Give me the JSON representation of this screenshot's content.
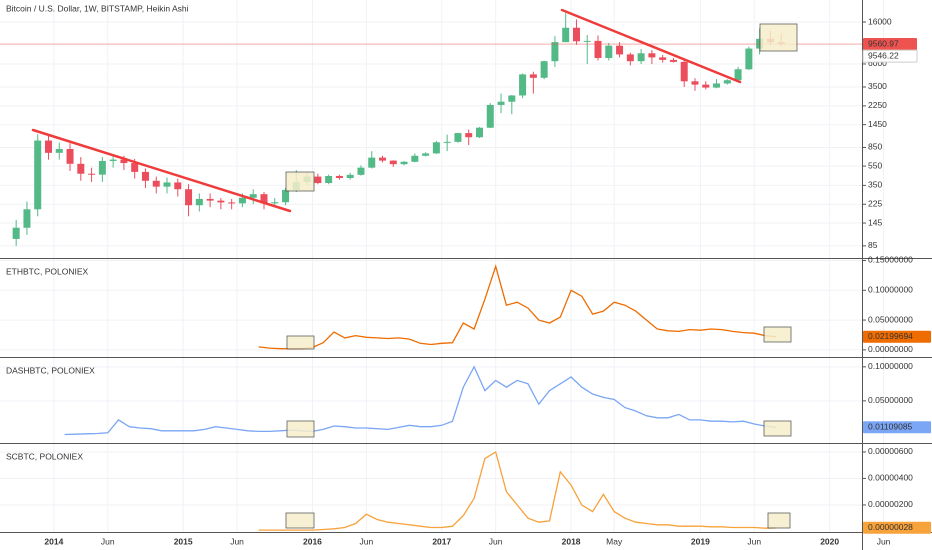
{
  "chart_data": [
    {
      "type": "candlestick",
      "title": "Bitcoin / U.S. Dollar, 1W, BITSTAMP, Heikin Ashi",
      "log_scale": true,
      "grid": true,
      "up_color": "#53b987",
      "down_color": "#eb4d5c",
      "ylim": [
        64,
        26800
      ],
      "yticks": [
        85,
        145,
        225,
        350,
        550,
        850,
        1450,
        2250,
        3500,
        6000,
        16000
      ],
      "price_labels": [
        9560.97,
        9546.22
      ],
      "price_line_color": "#ef5350",
      "x": [
        "2013-09",
        "2013-10",
        "2013-11",
        "2013-12",
        "2014-01",
        "2014-02",
        "2014-03",
        "2014-04",
        "2014-05",
        "2014-06",
        "2014-07",
        "2014-08",
        "2014-09",
        "2014-10",
        "2014-11",
        "2014-12",
        "2015-01",
        "2015-02",
        "2015-03",
        "2015-04",
        "2015-05",
        "2015-06",
        "2015-07",
        "2015-08",
        "2015-09",
        "2015-10",
        "2015-11",
        "2015-12",
        "2016-01",
        "2016-02",
        "2016-03",
        "2016-04",
        "2016-05",
        "2016-06",
        "2016-07",
        "2016-08",
        "2016-09",
        "2016-10",
        "2016-11",
        "2016-12",
        "2017-01",
        "2017-02",
        "2017-03",
        "2017-04",
        "2017-05",
        "2017-06",
        "2017-07",
        "2017-08",
        "2017-09",
        "2017-10",
        "2017-11",
        "2017-12",
        "2018-01",
        "2018-02",
        "2018-03",
        "2018-04",
        "2018-05",
        "2018-06",
        "2018-07",
        "2018-08",
        "2018-09",
        "2018-10",
        "2018-11",
        "2018-12",
        "2019-01",
        "2019-02",
        "2019-03",
        "2019-04",
        "2019-05",
        "2019-06",
        "2019-07",
        "2019-08"
      ],
      "open": [
        100,
        130,
        200,
        1000,
        750,
        820,
        580,
        460,
        450,
        620,
        640,
        590,
        480,
        390,
        340,
        375,
        320,
        220,
        255,
        245,
        235,
        230,
        262,
        285,
        230,
        236,
        315,
        378,
        430,
        370,
        436,
        416,
        448,
        530,
        670,
        625,
        575,
        608,
        700,
        740,
        960,
        970,
        1190,
        1080,
        1350,
        2300,
        2480,
        2870,
        4700,
        4340,
        6400,
        10000,
        14000,
        10200,
        10300,
        6900,
        9200,
        7500,
        6400,
        7700,
        7000,
        6600,
        6300,
        4000,
        3700,
        3450,
        3800,
        4100,
        5300,
        8600,
        10800,
        10000
      ],
      "high": [
        156,
        240,
        1160,
        1150,
        950,
        940,
        680,
        530,
        680,
        690,
        700,
        650,
        520,
        430,
        420,
        410,
        360,
        290,
        290,
        260,
        255,
        290,
        320,
        300,
        260,
        330,
        500,
        470,
        460,
        450,
        450,
        470,
        560,
        780,
        700,
        630,
        620,
        740,
        760,
        990,
        1150,
        1200,
        1290,
        1370,
        2400,
        3000,
        2900,
        4800,
        5000,
        6500,
        11500,
        19700,
        17000,
        11800,
        11700,
        9800,
        10000,
        7800,
        8500,
        8300,
        7400,
        6900,
        6500,
        4300,
        4000,
        4200,
        4200,
        5600,
        9000,
        13800,
        13000,
        12300
      ],
      "low": [
        85,
        110,
        170,
        640,
        640,
        490,
        390,
        380,
        380,
        530,
        500,
        410,
        330,
        290,
        290,
        270,
        170,
        190,
        210,
        200,
        200,
        210,
        225,
        200,
        210,
        220,
        300,
        350,
        360,
        360,
        400,
        400,
        440,
        520,
        600,
        540,
        560,
        600,
        690,
        730,
        780,
        950,
        900,
        1060,
        1340,
        1900,
        1850,
        2700,
        3000,
        4200,
        5600,
        10000,
        9400,
        6000,
        6500,
        6500,
        7000,
        5800,
        6000,
        6000,
        6200,
        6200,
        3500,
        3200,
        3300,
        3400,
        3700,
        4000,
        5200,
        7500,
        9300,
        9100
      ],
      "close": [
        130,
        200,
        1000,
        750,
        820,
        580,
        460,
        450,
        620,
        640,
        590,
        480,
        390,
        340,
        375,
        320,
        220,
        255,
        245,
        235,
        230,
        262,
        285,
        230,
        236,
        315,
        378,
        430,
        370,
        436,
        416,
        448,
        530,
        670,
        625,
        575,
        608,
        700,
        740,
        960,
        970,
        1190,
        1080,
        1350,
        2300,
        2480,
        2870,
        4700,
        4340,
        6400,
        10000,
        14000,
        10200,
        10300,
        6900,
        9200,
        7500,
        6400,
        7700,
        7000,
        6600,
        6300,
        4000,
        3700,
        3450,
        3800,
        4100,
        5300,
        8600,
        10800,
        10000,
        9600
      ]
    },
    {
      "type": "line",
      "title": "ETHBTC, POLONIEX",
      "color": "#ef6c00",
      "grid": true,
      "ylim": [
        -0.012,
        0.1525
      ],
      "yticks": [
        {
          "value": 0,
          "label": "0.00000000"
        },
        {
          "value": 0.05,
          "label": "0.05000000"
        },
        {
          "value": 0.1,
          "label": "0.10000000"
        },
        {
          "value": 0.15,
          "label": "0.15000000"
        }
      ],
      "last_label": 0.02199694,
      "x": [
        "2015-08",
        "2015-09",
        "2015-10",
        "2015-11",
        "2015-12",
        "2016-01",
        "2016-02",
        "2016-03",
        "2016-04",
        "2016-05",
        "2016-06",
        "2016-07",
        "2016-08",
        "2016-09",
        "2016-10",
        "2016-11",
        "2016-12",
        "2017-01",
        "2017-02",
        "2017-03",
        "2017-04",
        "2017-05",
        "2017-06",
        "2017-07",
        "2017-08",
        "2017-09",
        "2017-10",
        "2017-11",
        "2017-12",
        "2018-01",
        "2018-02",
        "2018-03",
        "2018-04",
        "2018-05",
        "2018-06",
        "2018-07",
        "2018-08",
        "2018-09",
        "2018-10",
        "2018-11",
        "2018-12",
        "2019-01",
        "2019-02",
        "2019-03",
        "2019-04",
        "2019-05",
        "2019-06",
        "2019-07",
        "2019-08"
      ],
      "values": [
        0.005,
        0.003,
        0.002,
        0.002,
        0.002,
        0.004,
        0.012,
        0.03,
        0.02,
        0.024,
        0.021,
        0.02,
        0.019,
        0.02,
        0.018,
        0.011,
        0.009,
        0.011,
        0.012,
        0.045,
        0.035,
        0.085,
        0.14,
        0.075,
        0.08,
        0.07,
        0.05,
        0.045,
        0.055,
        0.1,
        0.09,
        0.06,
        0.065,
        0.08,
        0.075,
        0.065,
        0.05,
        0.035,
        0.032,
        0.031,
        0.034,
        0.033,
        0.035,
        0.034,
        0.031,
        0.029,
        0.028,
        0.024,
        0.02199694
      ]
    },
    {
      "type": "line",
      "title": "DASHBTC, POLONIEX",
      "color": "#7aa6f5",
      "grid": true,
      "ylim": [
        -0.012,
        0.113
      ],
      "yticks": [
        {
          "value": 0.05,
          "label": "0.05000000"
        },
        {
          "value": 0.1,
          "label": "0.10000000"
        }
      ],
      "last_label": 0.01109085,
      "x": [
        "2014-02",
        "2014-03",
        "2014-04",
        "2014-05",
        "2014-06",
        "2014-07",
        "2014-08",
        "2014-09",
        "2014-10",
        "2014-11",
        "2014-12",
        "2015-01",
        "2015-02",
        "2015-03",
        "2015-04",
        "2015-05",
        "2015-06",
        "2015-07",
        "2015-08",
        "2015-09",
        "2015-10",
        "2015-11",
        "2015-12",
        "2016-01",
        "2016-02",
        "2016-03",
        "2016-04",
        "2016-05",
        "2016-06",
        "2016-07",
        "2016-08",
        "2016-09",
        "2016-10",
        "2016-11",
        "2016-12",
        "2017-01",
        "2017-02",
        "2017-03",
        "2017-04",
        "2017-05",
        "2017-06",
        "2017-07",
        "2017-08",
        "2017-09",
        "2017-10",
        "2017-11",
        "2017-12",
        "2018-01",
        "2018-02",
        "2018-03",
        "2018-04",
        "2018-05",
        "2018-06",
        "2018-07",
        "2018-08",
        "2018-09",
        "2018-10",
        "2018-11",
        "2018-12",
        "2019-01",
        "2019-02",
        "2019-03",
        "2019-04",
        "2019-05",
        "2019-06",
        "2019-07",
        "2019-08"
      ],
      "values": [
        0.0005,
        0.001,
        0.0015,
        0.002,
        0.003,
        0.022,
        0.012,
        0.01,
        0.009,
        0.006,
        0.006,
        0.006,
        0.006,
        0.008,
        0.012,
        0.01,
        0.008,
        0.006,
        0.005,
        0.005,
        0.006,
        0.007,
        0.006,
        0.005,
        0.008,
        0.013,
        0.012,
        0.01,
        0.01,
        0.009,
        0.008,
        0.011,
        0.014,
        0.012,
        0.012,
        0.014,
        0.02,
        0.07,
        0.1,
        0.065,
        0.08,
        0.07,
        0.08,
        0.075,
        0.045,
        0.065,
        0.075,
        0.085,
        0.07,
        0.06,
        0.055,
        0.052,
        0.04,
        0.035,
        0.028,
        0.025,
        0.025,
        0.03,
        0.022,
        0.022,
        0.02,
        0.02,
        0.019,
        0.02,
        0.016,
        0.013,
        0.01109085
      ]
    },
    {
      "type": "line",
      "title": "SCBTC, POLONIEX",
      "color": "#f7a23b",
      "grid": true,
      "ylim": [
        -4e-08,
        6.6e-06
      ],
      "yticks": [
        {
          "value": 2e-06,
          "label": "0.00000200"
        },
        {
          "value": 4e-06,
          "label": "0.00000400"
        },
        {
          "value": 6e-06,
          "label": "0.00000600"
        }
      ],
      "last_label": {
        "value": 2.8e-07,
        "label": "0.00000028"
      },
      "x": [
        "2015-08",
        "2015-09",
        "2015-10",
        "2015-11",
        "2015-12",
        "2016-01",
        "2016-02",
        "2016-03",
        "2016-04",
        "2016-05",
        "2016-06",
        "2016-07",
        "2016-08",
        "2016-09",
        "2016-10",
        "2016-11",
        "2016-12",
        "2017-01",
        "2017-02",
        "2017-03",
        "2017-04",
        "2017-05",
        "2017-06",
        "2017-07",
        "2017-08",
        "2017-09",
        "2017-10",
        "2017-11",
        "2017-12",
        "2018-01",
        "2018-02",
        "2018-03",
        "2018-04",
        "2018-05",
        "2018-06",
        "2018-07",
        "2018-08",
        "2018-09",
        "2018-10",
        "2018-11",
        "2018-12",
        "2019-01",
        "2019-02",
        "2019-03",
        "2019-04",
        "2019-05",
        "2019-06",
        "2019-07",
        "2019-08"
      ],
      "values": [
        1e-07,
        1e-07,
        1e-07,
        1e-07,
        1e-07,
        1e-07,
        1.5e-07,
        2e-07,
        3e-07,
        6e-07,
        1.3e-06,
        9e-07,
        7e-07,
        6e-07,
        5e-07,
        4e-07,
        3e-07,
        3e-07,
        4e-07,
        1.2e-06,
        2.5e-06,
        5.5e-06,
        6e-06,
        3e-06,
        2e-06,
        1e-06,
        7e-07,
        8e-07,
        4.5e-06,
        3.5e-06,
        2e-06,
        1.5e-06,
        2.8e-06,
        1.5e-06,
        1e-06,
        7e-07,
        6e-07,
        5e-07,
        5e-07,
        4e-07,
        4e-07,
        4e-07,
        3.5e-07,
        3.5e-07,
        3e-07,
        3e-07,
        3e-07,
        2.5e-07,
        2.8e-07
      ],
      "xlim": [
        "2013-08",
        "2020-04"
      ],
      "xticks": [
        {
          "value": "2014-01",
          "label": "2014"
        },
        {
          "value": "2014-06",
          "label": "Jun"
        },
        {
          "value": "2015-01",
          "label": "2015"
        },
        {
          "value": "2015-06",
          "label": "Jun"
        },
        {
          "value": "2016-01",
          "label": "2016"
        },
        {
          "value": "2016-06",
          "label": "Jun"
        },
        {
          "value": "2017-01",
          "label": "2017"
        },
        {
          "value": "2017-06",
          "label": "Jun"
        },
        {
          "value": "2018-01",
          "label": "2018"
        },
        {
          "value": "2018-05",
          "label": "May"
        },
        {
          "value": "2019-01",
          "label": "2019"
        },
        {
          "value": "2019-06",
          "label": "Jun"
        },
        {
          "value": "2020-01",
          "label": "2020"
        },
        {
          "value": "2020-06",
          "label": "Jun"
        }
      ]
    }
  ]
}
